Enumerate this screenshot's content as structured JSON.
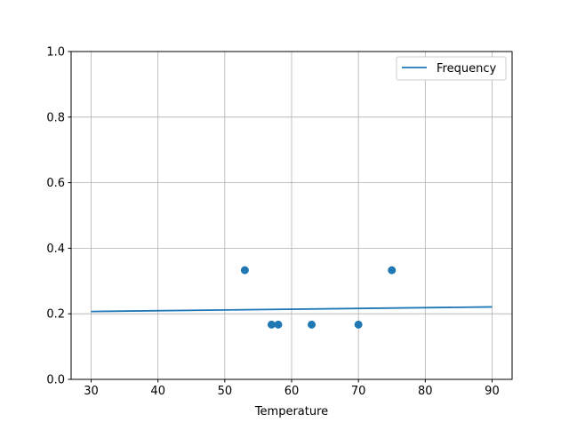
{
  "chart_data": {
    "type": "scatter",
    "title": "",
    "xlabel": "Temperature",
    "ylabel": "",
    "xlim": [
      27,
      93
    ],
    "ylim": [
      0,
      1
    ],
    "xticks": [
      30,
      40,
      50,
      60,
      70,
      80,
      90
    ],
    "yticks": [
      "0.0",
      "0.2",
      "0.4",
      "0.6",
      "0.8",
      "1.0"
    ],
    "grid": true,
    "legend": {
      "position": "top-right",
      "entries": [
        "Frequency"
      ]
    },
    "color": "#1f77b4",
    "line_series": {
      "name": "Frequency",
      "x": [
        30,
        90
      ],
      "y": [
        0.207,
        0.221
      ]
    },
    "scatter_series": {
      "x": [
        53,
        57,
        58,
        63,
        70,
        75
      ],
      "y": [
        0.333,
        0.167,
        0.167,
        0.167,
        0.167,
        0.333
      ]
    }
  }
}
